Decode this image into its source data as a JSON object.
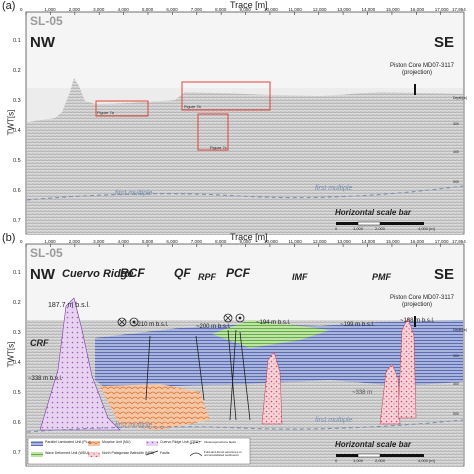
{
  "panel_a": {
    "label": "(a)",
    "axis_title": "Trace [m]",
    "x_ticks": [
      "0",
      "1,000",
      "2,000",
      "3,000",
      "4,000",
      "5,000",
      "6,000",
      "7,000",
      "8,000",
      "9,000",
      "10,000",
      "11,000",
      "12,000",
      "13,000",
      "14,000",
      "15,000",
      "16,000",
      "17,000",
      "17,954"
    ],
    "y_label": "TWT[s]",
    "y_ticks": [
      "0.1",
      "0.2",
      "0.3",
      "0.4",
      "0.5",
      "0.6",
      "0.7"
    ],
    "right_ticks": [
      "Depth[m]",
      "300",
      "400",
      "500"
    ],
    "profile": "SL-05",
    "nw": "NW",
    "se": "SE",
    "core_label_1": "Piston Core MD07-3117",
    "core_label_2": "(projection)",
    "boxes": [
      "Figure 7a",
      "Figure 7b",
      "Figure 7c"
    ],
    "multiple": [
      "first multiple",
      "first multiple"
    ],
    "scale_title": "Horizontal scale bar",
    "scale_ticks": [
      "0",
      "1,000",
      "2,000",
      "4,000 [m]"
    ]
  },
  "panel_b": {
    "label": "(b)",
    "axis_title": "Trace [m]",
    "x_ticks": [
      "0",
      "1,000",
      "2,000",
      "3,000",
      "4,000",
      "5,000",
      "6,000",
      "7,000",
      "8,000",
      "9,000",
      "10,000",
      "11,000",
      "12,000",
      "13,000",
      "14,000",
      "15,000",
      "16,000",
      "17,000",
      "17,954"
    ],
    "y_label": "TWT[s]",
    "y_ticks": [
      "0.1",
      "0.2",
      "0.3",
      "0.4",
      "0.5",
      "0.6",
      "0.7"
    ],
    "right_ticks": [
      "Depth[m]",
      "300",
      "400",
      "500"
    ],
    "profile": "SL-05",
    "nw": "NW",
    "se": "SE",
    "cuervo": "Cuervo Ridge",
    "faults": [
      "RCF",
      "QF",
      "RPF",
      "PCF",
      "IMF",
      "PMF",
      "CRF"
    ],
    "depths": [
      "187.7 m b.s.l.",
      "~210 m b.s.l.",
      "~200 m b.s.l.",
      "~194 m b.s.l.",
      "~199 m b.s.l.",
      "~188 m b.s.l.",
      "~338 m b.s.l.",
      "~338 m"
    ],
    "core_label_1": "Piston Core MD07-3117",
    "core_label_2": "(projection)",
    "multiple": [
      "first multiple",
      "first multiple"
    ],
    "scale_title": "Horizontal scale bar",
    "scale_ticks": [
      "0",
      "1,000",
      "2,000",
      "4,000 [m]"
    ],
    "legend": [
      "Parallel Laminated Unit (PLu)",
      "Wave Deformed Unit (WDU)",
      "Moraine Unit (MU)",
      "North Patagonian Batholith (NPB)",
      "Cuervo Ridge Unit (CRU)",
      "Faults",
      "Intraevaporazione faults",
      "Fold-and-thrust structures in unconsolidated sediments"
    ]
  }
}
